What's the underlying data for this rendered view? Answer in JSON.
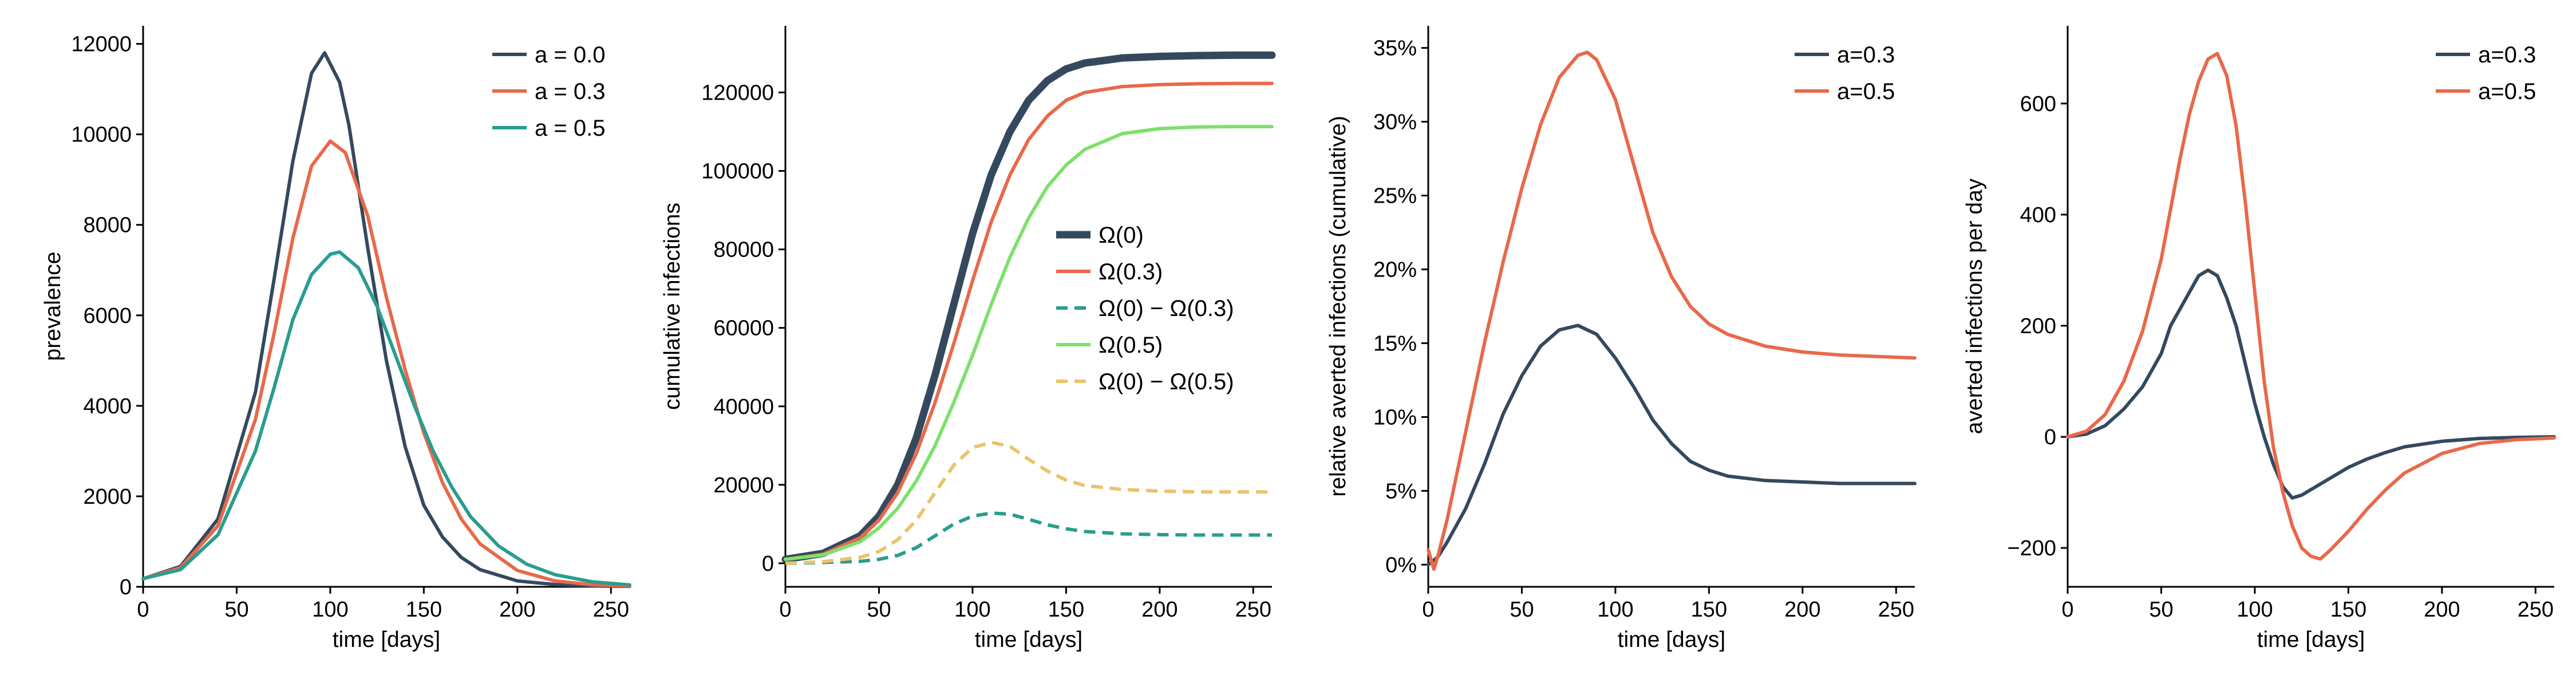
{
  "colors": {
    "dark": "#34495e",
    "orange": "#e8694a",
    "teal": "#2a9d8f",
    "lightgreen": "#7ee06c",
    "yellow": "#e9c46a"
  },
  "chart_data": [
    {
      "type": "line",
      "xlabel": "time [days]",
      "ylabel": "prevalence",
      "xlim": [
        0,
        260
      ],
      "ylim": [
        0,
        12400
      ],
      "xticks": [
        0,
        50,
        100,
        150,
        200,
        250
      ],
      "xtick_labels": [
        "0",
        "50",
        "100",
        "150",
        "200",
        "250"
      ],
      "yticks": [
        0,
        2000,
        4000,
        6000,
        8000,
        10000,
        12000
      ],
      "ytick_labels": [
        "0",
        "2000",
        "4000",
        "6000",
        "8000",
        "10000",
        "12000"
      ],
      "legend_position": "top-right",
      "series": [
        {
          "name": "a = 0.0",
          "color": "#34495e",
          "style": "solid",
          "width": "normal",
          "x": [
            0,
            20,
            40,
            60,
            70,
            80,
            90,
            97,
            105,
            110,
            120,
            130,
            140,
            150,
            160,
            170,
            180,
            200,
            220,
            240,
            260
          ],
          "y": [
            180,
            450,
            1500,
            4300,
            6800,
            9400,
            11350,
            11800,
            11150,
            10200,
            7500,
            5000,
            3100,
            1800,
            1100,
            650,
            380,
            130,
            50,
            20,
            10
          ]
        },
        {
          "name": "a = 0.3",
          "color": "#e8694a",
          "style": "solid",
          "width": "normal",
          "x": [
            0,
            20,
            40,
            60,
            70,
            80,
            90,
            100,
            108,
            120,
            130,
            140,
            150,
            160,
            170,
            180,
            200,
            220,
            240,
            260
          ],
          "y": [
            180,
            420,
            1350,
            3700,
            5600,
            7700,
            9300,
            9850,
            9600,
            8200,
            6400,
            4800,
            3400,
            2300,
            1500,
            950,
            360,
            130,
            45,
            15
          ]
        },
        {
          "name": "a = 0.5",
          "color": "#2a9d8f",
          "style": "solid",
          "width": "normal",
          "x": [
            0,
            20,
            40,
            60,
            70,
            80,
            90,
            100,
            105,
            115,
            125,
            135,
            145,
            155,
            165,
            175,
            190,
            205,
            220,
            240,
            260
          ],
          "y": [
            180,
            380,
            1150,
            3000,
            4400,
            5900,
            6900,
            7350,
            7400,
            7050,
            6200,
            5100,
            4000,
            3000,
            2200,
            1550,
            900,
            500,
            270,
            110,
            40
          ]
        }
      ]
    },
    {
      "type": "line",
      "xlabel": "time [days]",
      "ylabel": "cumulative infections",
      "xlim": [
        0,
        260
      ],
      "ylim": [
        -6000,
        137000
      ],
      "xticks": [
        0,
        50,
        100,
        150,
        200,
        250
      ],
      "xtick_labels": [
        "0",
        "50",
        "100",
        "150",
        "200",
        "250"
      ],
      "yticks": [
        0,
        20000,
        40000,
        60000,
        80000,
        100000,
        120000
      ],
      "ytick_labels": [
        "0",
        "20000",
        "40000",
        "60000",
        "80000",
        "100000",
        "120000"
      ],
      "legend_position": "center-right",
      "series": [
        {
          "name": "Ω(0)",
          "color": "#34495e",
          "style": "solid",
          "width": "thick",
          "x": [
            0,
            20,
            40,
            50,
            60,
            70,
            80,
            90,
            100,
            110,
            120,
            130,
            140,
            150,
            160,
            180,
            200,
            220,
            240,
            260
          ],
          "y": [
            1000,
            2500,
            7000,
            12000,
            20000,
            32000,
            48000,
            66000,
            84000,
            99000,
            110000,
            118000,
            123000,
            126000,
            127500,
            128800,
            129200,
            129400,
            129500,
            129500
          ]
        },
        {
          "name": "Ω(0.3)",
          "color": "#e8694a",
          "style": "solid",
          "width": "normal",
          "x": [
            0,
            20,
            40,
            50,
            60,
            70,
            80,
            90,
            100,
            110,
            120,
            130,
            140,
            150,
            160,
            180,
            200,
            220,
            240,
            260
          ],
          "y": [
            1000,
            2300,
            6500,
            11000,
            18000,
            28000,
            41000,
            56000,
            72000,
            87000,
            99000,
            108000,
            114000,
            118000,
            120000,
            121500,
            122000,
            122200,
            122300,
            122300
          ]
        },
        {
          "name": "Ω(0) − Ω(0.3)",
          "color": "#2a9d8f",
          "style": "dashed",
          "width": "normal",
          "x": [
            0,
            20,
            40,
            50,
            60,
            70,
            80,
            90,
            100,
            110,
            120,
            130,
            140,
            150,
            160,
            180,
            200,
            220,
            240,
            260
          ],
          "y": [
            0,
            200,
            500,
            1000,
            2000,
            4000,
            7000,
            10000,
            12000,
            12800,
            12500,
            11200,
            9800,
            8800,
            8100,
            7500,
            7300,
            7200,
            7200,
            7200
          ]
        },
        {
          "name": "Ω(0.5)",
          "color": "#7ee06c",
          "style": "solid",
          "width": "normal",
          "x": [
            0,
            20,
            40,
            50,
            60,
            70,
            80,
            90,
            100,
            110,
            120,
            130,
            140,
            150,
            160,
            180,
            200,
            220,
            240,
            260
          ],
          "y": [
            1000,
            2100,
            5500,
            9000,
            14000,
            21000,
            30000,
            41000,
            53000,
            66000,
            78000,
            88000,
            96000,
            101500,
            105500,
            109500,
            110800,
            111200,
            111300,
            111300
          ]
        },
        {
          "name": "Ω(0) − Ω(0.5)",
          "color": "#e9c46a",
          "style": "dashed",
          "width": "normal",
          "x": [
            0,
            20,
            40,
            50,
            60,
            70,
            80,
            90,
            100,
            110,
            120,
            130,
            140,
            150,
            160,
            180,
            200,
            220,
            240,
            260
          ],
          "y": [
            0,
            400,
            1500,
            3000,
            6000,
            11000,
            18000,
            25000,
            29500,
            30800,
            29800,
            26500,
            23500,
            21200,
            19800,
            18800,
            18400,
            18200,
            18200,
            18200
          ]
        }
      ]
    },
    {
      "type": "line",
      "xlabel": "time [days]",
      "ylabel": "relative averted infections (cumulative)",
      "xlim": [
        0,
        260
      ],
      "ylim": [
        -1.5,
        36.5
      ],
      "xticks": [
        0,
        50,
        100,
        150,
        200,
        250
      ],
      "xtick_labels": [
        "0",
        "50",
        "100",
        "150",
        "200",
        "250"
      ],
      "yticks": [
        0,
        5,
        10,
        15,
        20,
        25,
        30,
        35
      ],
      "ytick_labels": [
        "0%",
        "5%",
        "10%",
        "15%",
        "20%",
        "25%",
        "30%",
        "35%"
      ],
      "legend_position": "top-right",
      "series": [
        {
          "name": "a=0.3",
          "color": "#34495e",
          "style": "solid",
          "width": "normal",
          "x": [
            0,
            5,
            10,
            20,
            30,
            40,
            50,
            60,
            70,
            80,
            90,
            100,
            110,
            120,
            130,
            140,
            150,
            160,
            180,
            200,
            220,
            240,
            260
          ],
          "y": [
            0,
            0.5,
            1.5,
            3.8,
            6.8,
            10.2,
            12.8,
            14.8,
            15.9,
            16.2,
            15.6,
            14.0,
            12.0,
            9.8,
            8.2,
            7.0,
            6.4,
            6.0,
            5.7,
            5.6,
            5.5,
            5.5,
            5.5
          ]
        },
        {
          "name": "a=0.5",
          "color": "#e8694a",
          "style": "solid",
          "width": "normal",
          "x": [
            0,
            3,
            5,
            10,
            20,
            30,
            40,
            50,
            60,
            70,
            80,
            85,
            90,
            100,
            110,
            120,
            130,
            140,
            150,
            160,
            180,
            200,
            220,
            240,
            260
          ],
          "y": [
            1.0,
            -0.3,
            0.5,
            3.0,
            9.0,
            15.0,
            20.5,
            25.5,
            29.8,
            33.0,
            34.5,
            34.7,
            34.2,
            31.5,
            27.0,
            22.5,
            19.5,
            17.5,
            16.3,
            15.6,
            14.8,
            14.4,
            14.2,
            14.1,
            14.0
          ]
        }
      ]
    },
    {
      "type": "line",
      "xlabel": "time [days]",
      "ylabel": "averted infections per day",
      "xlim": [
        0,
        260
      ],
      "ylim": [
        -270,
        740
      ],
      "xticks": [
        0,
        50,
        100,
        150,
        200,
        250
      ],
      "xtick_labels": [
        "0",
        "50",
        "100",
        "150",
        "200",
        "250"
      ],
      "yticks": [
        -200,
        0,
        200,
        400,
        600
      ],
      "ytick_labels": [
        "−200",
        "0",
        "200",
        "400",
        "600"
      ],
      "legend_position": "top-right",
      "series": [
        {
          "name": "a=0.3",
          "color": "#34495e",
          "style": "solid",
          "width": "normal",
          "x": [
            0,
            10,
            20,
            30,
            40,
            50,
            55,
            60,
            65,
            70,
            75,
            80,
            85,
            90,
            95,
            100,
            105,
            110,
            115,
            120,
            125,
            130,
            140,
            150,
            160,
            170,
            180,
            200,
            220,
            240,
            260
          ],
          "y": [
            0,
            5,
            20,
            50,
            90,
            150,
            200,
            230,
            260,
            290,
            300,
            290,
            250,
            200,
            130,
            60,
            0,
            -50,
            -90,
            -110,
            -105,
            -95,
            -75,
            -55,
            -40,
            -28,
            -18,
            -8,
            -3,
            -1,
            0
          ]
        },
        {
          "name": "a=0.5",
          "color": "#e8694a",
          "style": "solid",
          "width": "normal",
          "x": [
            0,
            10,
            20,
            30,
            40,
            50,
            55,
            60,
            65,
            70,
            75,
            80,
            85,
            90,
            95,
            100,
            105,
            110,
            115,
            120,
            125,
            130,
            135,
            140,
            150,
            160,
            170,
            180,
            200,
            220,
            240,
            260
          ],
          "y": [
            0,
            10,
            40,
            100,
            190,
            320,
            410,
            500,
            580,
            640,
            680,
            690,
            650,
            560,
            420,
            260,
            100,
            -20,
            -100,
            -160,
            -200,
            -215,
            -220,
            -205,
            -170,
            -130,
            -95,
            -65,
            -30,
            -12,
            -5,
            -2
          ]
        }
      ]
    }
  ]
}
